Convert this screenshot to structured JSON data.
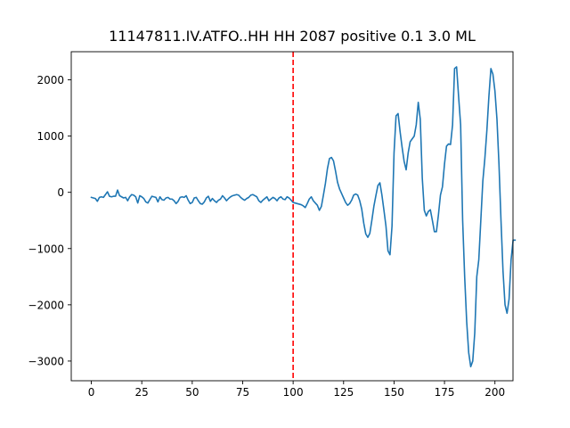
{
  "chart_data": {
    "type": "line",
    "title": "11147811.IV.ATFO..HH HH 2087 positive 0.1 3.0 ML",
    "xlabel": "",
    "ylabel": "",
    "xlim": [
      -9.95,
      208.95
    ],
    "ylim": [
      -3350,
      2500
    ],
    "xticks": [
      0,
      25,
      50,
      75,
      100,
      125,
      150,
      175,
      200
    ],
    "yticks": [
      -3000,
      -2000,
      -1000,
      0,
      1000,
      2000
    ],
    "x_tick_labels": [
      "0",
      "25",
      "50",
      "75",
      "100",
      "125",
      "150",
      "175",
      "200"
    ],
    "y_tick_labels": [
      "−3000",
      "−2000",
      "−1000",
      "0",
      "1000",
      "2000"
    ],
    "grid": false,
    "series": [
      {
        "color": "#1f77b4",
        "x_start": 0,
        "x_step": 1,
        "values": [
          -90,
          -100,
          -110,
          -160,
          -90,
          -80,
          -90,
          -40,
          10,
          -70,
          -80,
          -70,
          -70,
          40,
          -60,
          -80,
          -100,
          -90,
          -150,
          -80,
          -40,
          -50,
          -80,
          -190,
          -60,
          -80,
          -110,
          -170,
          -190,
          -130,
          -70,
          -80,
          -90,
          -170,
          -80,
          -130,
          -140,
          -100,
          -90,
          -120,
          -120,
          -150,
          -200,
          -160,
          -90,
          -80,
          -90,
          -60,
          -140,
          -200,
          -180,
          -100,
          -90,
          -150,
          -200,
          -210,
          -170,
          -100,
          -70,
          -160,
          -110,
          -150,
          -180,
          -140,
          -120,
          -60,
          -100,
          -150,
          -110,
          -80,
          -60,
          -50,
          -40,
          -50,
          -90,
          -120,
          -140,
          -110,
          -90,
          -50,
          -40,
          -60,
          -80,
          -150,
          -180,
          -140,
          -110,
          -80,
          -150,
          -120,
          -90,
          -110,
          -150,
          -100,
          -80,
          -120,
          -130,
          -80,
          -100,
          -140,
          -180,
          -190,
          -200,
          -210,
          -220,
          -240,
          -270,
          -200,
          -120,
          -80,
          -150,
          -190,
          -230,
          -320,
          -250,
          -50,
          160,
          420,
          600,
          620,
          560,
          380,
          180,
          60,
          -20,
          -100,
          -180,
          -230,
          -200,
          -140,
          -50,
          -30,
          -50,
          -150,
          -300,
          -550,
          -740,
          -800,
          -730,
          -500,
          -250,
          -60,
          120,
          170,
          -50,
          -320,
          -600,
          -1040,
          -1110,
          -600,
          700,
          1360,
          1400,
          1080,
          800,
          550,
          400,
          700,
          900,
          950,
          1000,
          1200,
          1600,
          1300,
          250,
          -320,
          -420,
          -340,
          -310,
          -500,
          -700,
          -700,
          -400,
          -50,
          100,
          500,
          820,
          860,
          850,
          1200,
          2200,
          2230,
          1700,
          1200,
          -500,
          -1500,
          -2300,
          -2850,
          -3100,
          -3000,
          -2500,
          -1500,
          -1200,
          -500,
          200,
          600,
          1100,
          1700,
          2200,
          2100,
          1800,
          1300,
          500,
          -500,
          -1400,
          -2000,
          -2150,
          -1900,
          -1200,
          -850,
          -850
        ]
      }
    ],
    "vline": {
      "x": 100,
      "color": "#ff0000",
      "style": "dashed"
    }
  }
}
